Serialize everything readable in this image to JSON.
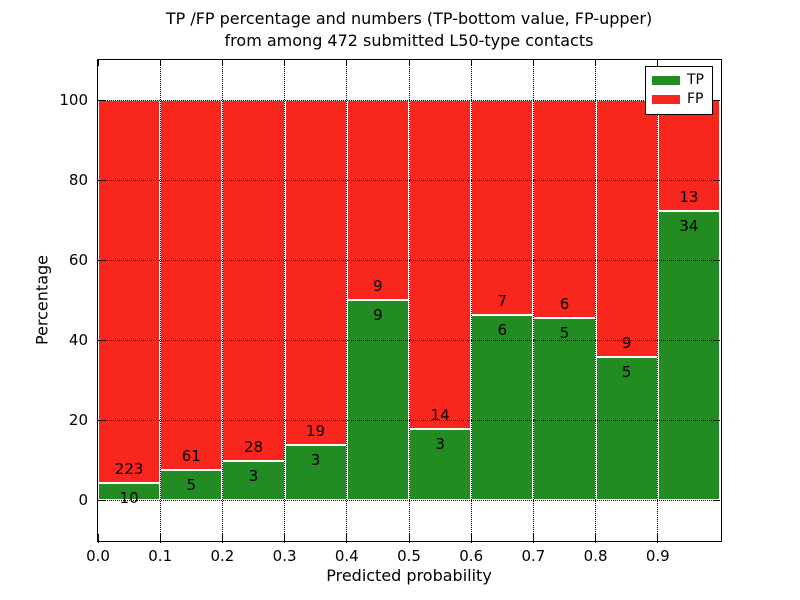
{
  "title": {
    "line1": "TP /FP percentage and numbers (TP-bottom value, FP-upper)",
    "line2": "from among 472 submitted L50-type contacts"
  },
  "axes": {
    "xlabel": "Predicted probability",
    "ylabel": "Percentage",
    "xtick_labels": [
      "0.0",
      "0.1",
      "0.2",
      "0.3",
      "0.4",
      "0.5",
      "0.6",
      "0.7",
      "0.8",
      "0.9"
    ],
    "ytick_labels": [
      "0",
      "20",
      "40",
      "60",
      "80",
      "100"
    ]
  },
  "legend": {
    "items": [
      {
        "label": "TP",
        "color": "#228b22"
      },
      {
        "label": "FP",
        "color": "#f8261c"
      }
    ]
  },
  "chart_data": {
    "type": "bar",
    "subtype": "stacked-100-percent",
    "title": "TP /FP percentage and numbers (TP-bottom value, FP-upper)\nfrom among 472 submitted L50-type contacts",
    "xlabel": "Predicted probability",
    "ylabel": "Percentage",
    "xlim": [
      0.0,
      1.0
    ],
    "ylim": [
      -10,
      110
    ],
    "xticks": [
      "0.0",
      "0.1",
      "0.2",
      "0.3",
      "0.4",
      "0.5",
      "0.6",
      "0.7",
      "0.8",
      "0.9"
    ],
    "yticks": [
      0,
      20,
      40,
      60,
      80,
      100
    ],
    "grid": "dotted, both axes",
    "legend_position": "upper-right",
    "bin_edges": [
      0.0,
      0.1,
      0.2,
      0.3,
      0.4,
      0.5,
      0.6,
      0.7,
      0.8,
      0.9,
      1.0
    ],
    "total_contacts": 472,
    "series": [
      {
        "name": "TP",
        "color": "#228b22",
        "counts": [
          10,
          5,
          3,
          3,
          9,
          3,
          6,
          5,
          5,
          34
        ]
      },
      {
        "name": "FP",
        "color": "#f8261c",
        "counts": [
          223,
          61,
          28,
          19,
          9,
          14,
          7,
          6,
          9,
          13
        ]
      }
    ],
    "tp_percentages": [
      4.3,
      7.6,
      9.7,
      13.6,
      50.0,
      17.6,
      46.2,
      45.5,
      35.7,
      72.3
    ]
  }
}
